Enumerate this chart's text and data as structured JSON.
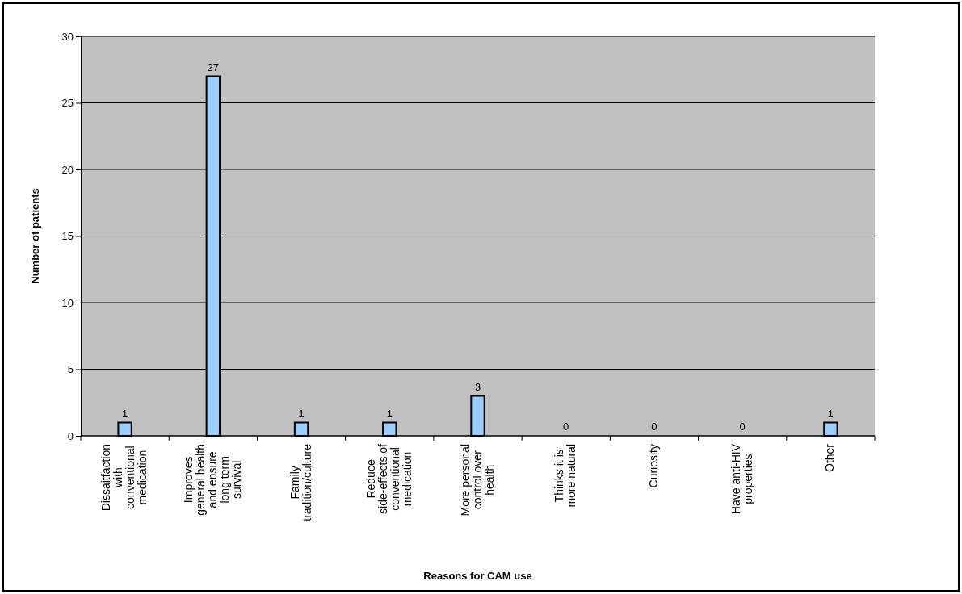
{
  "chart_data": {
    "type": "bar",
    "xlabel": "Reasons for CAM use",
    "ylabel": "Number of patients",
    "categories": [
      "Dissaitfaction with conventional medication",
      "Improves general health and ensure long term survival",
      "Family tradition/culture",
      "Reduce side-effects of conventional medication",
      "More personal control over health",
      "Thinks it is more natural",
      "Curiosity",
      "Have anti-HIV properties",
      "Other"
    ],
    "values": [
      1,
      27,
      1,
      1,
      3,
      0,
      0,
      0,
      1
    ],
    "color": "#99ccff",
    "ylim": [
      0,
      30
    ],
    "yticks": [
      0,
      5,
      10,
      15,
      20,
      25,
      30
    ],
    "grid": "y",
    "data_labels": true
  }
}
